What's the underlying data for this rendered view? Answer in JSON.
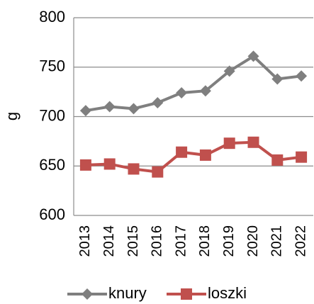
{
  "chart_data": {
    "type": "line",
    "y_label": "g",
    "categories": [
      "2013",
      "2014",
      "2015",
      "2016",
      "2017",
      "2018",
      "2019",
      "2020",
      "2021",
      "2022"
    ],
    "series": [
      {
        "name": "knury",
        "color": "#7f7f7f",
        "marker": "diamond",
        "values": [
          706,
          710,
          708,
          714,
          724,
          726,
          746,
          761,
          738,
          741
        ]
      },
      {
        "name": "loszki",
        "color": "#c0504d",
        "marker": "square",
        "values": [
          651,
          652,
          647,
          644,
          664,
          661,
          673,
          674,
          656,
          659
        ]
      }
    ],
    "ylim": [
      600,
      800
    ],
    "yticks": [
      600,
      650,
      700,
      750,
      800
    ],
    "grid": true
  }
}
